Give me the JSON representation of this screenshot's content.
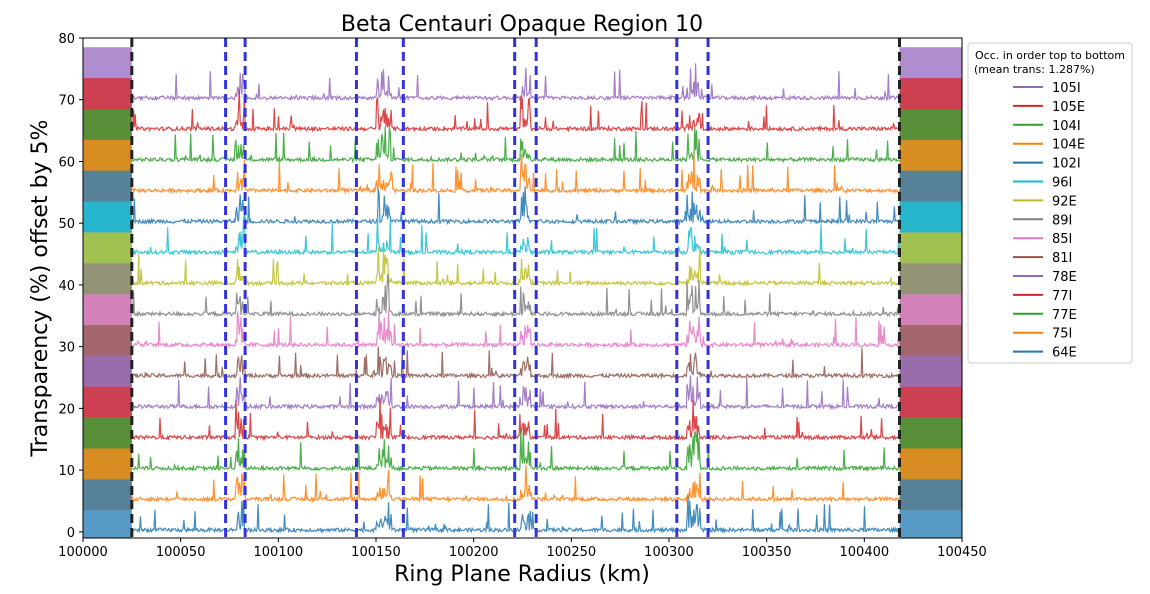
{
  "chart_data": {
    "type": "line",
    "title": "Beta Centauri Opaque Region 10",
    "xlabel": "Ring Plane Radius (km)",
    "ylabel": "Transparency (%) offset by 5%",
    "xlim": [
      100000,
      100450
    ],
    "ylim": [
      -1,
      80
    ],
    "x_ticks": [
      100000,
      100050,
      100100,
      100150,
      100200,
      100250,
      100300,
      100350,
      100400,
      100450
    ],
    "y_ticks": [
      0,
      10,
      20,
      30,
      40,
      50,
      60,
      70,
      80
    ],
    "grid": false,
    "legend": {
      "title_line1": "Occ. in order top to bottom",
      "title_line2": "(mean trans: 1.287%)",
      "position": "upper-right-outside"
    },
    "opaque_region": [
      100025,
      100418
    ],
    "black_dashed_lines": [
      100025,
      100418
    ],
    "blue_dashed_lines": [
      100073,
      100083,
      100140,
      100164,
      100221,
      100232,
      100304,
      100320
    ],
    "spike_clusters": [
      [
        100078,
        100083
      ],
      [
        100150,
        100158
      ],
      [
        100224,
        100229
      ],
      [
        100309,
        100316
      ]
    ],
    "series": [
      {
        "name": "105I",
        "offset": 70,
        "color": "#9467bd"
      },
      {
        "name": "105E",
        "offset": 65,
        "color": "#d62728"
      },
      {
        "name": "104I",
        "offset": 60,
        "color": "#2ca02c"
      },
      {
        "name": "104E",
        "offset": 55,
        "color": "#ff7f0e"
      },
      {
        "name": "102I",
        "offset": 50,
        "color": "#1f77b4"
      },
      {
        "name": "96I",
        "offset": 45,
        "color": "#17becf"
      },
      {
        "name": "92E",
        "offset": 40,
        "color": "#bcbd22"
      },
      {
        "name": "89I",
        "offset": 35,
        "color": "#7f7f7f"
      },
      {
        "name": "85I",
        "offset": 30,
        "color": "#e377c2"
      },
      {
        "name": "81I",
        "offset": 25,
        "color": "#8c564b"
      },
      {
        "name": "78E",
        "offset": 20,
        "color": "#9467bd"
      },
      {
        "name": "77I",
        "offset": 15,
        "color": "#d62728"
      },
      {
        "name": "77E",
        "offset": 10,
        "color": "#2ca02c"
      },
      {
        "name": "75I",
        "offset": 5,
        "color": "#ff7f0e"
      },
      {
        "name": "64E",
        "offset": 0,
        "color": "#1f77b4"
      }
    ]
  }
}
